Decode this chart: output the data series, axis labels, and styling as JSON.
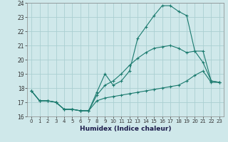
{
  "xlabel": "Humidex (Indice chaleur)",
  "bg_color": "#cfe8ea",
  "grid_color": "#aacfd2",
  "line_color": "#1a7a6e",
  "xlim": [
    -0.5,
    23.5
  ],
  "ylim": [
    16,
    24
  ],
  "xtick_labels": [
    "0",
    "1",
    "2",
    "3",
    "4",
    "5",
    "6",
    "7",
    "8",
    "9",
    "10",
    "11",
    "12",
    "13",
    "14",
    "15",
    "16",
    "17",
    "18",
    "19",
    "20",
    "21",
    "22",
    "23"
  ],
  "ytick_labels": [
    "16",
    "17",
    "18",
    "19",
    "20",
    "21",
    "22",
    "23",
    "24"
  ],
  "line1_x": [
    0,
    1,
    2,
    3,
    4,
    5,
    6,
    7,
    8,
    9,
    10,
    11,
    12,
    13,
    14,
    15,
    16,
    17,
    18,
    19,
    20,
    21,
    22,
    23
  ],
  "line1_y": [
    17.8,
    17.1,
    17.1,
    17.0,
    16.5,
    16.5,
    16.4,
    16.4,
    17.7,
    19.0,
    18.2,
    18.5,
    19.2,
    21.5,
    22.3,
    23.1,
    23.8,
    23.8,
    23.4,
    23.1,
    20.6,
    20.6,
    18.5,
    18.4
  ],
  "line2_x": [
    0,
    1,
    2,
    3,
    4,
    5,
    6,
    7,
    8,
    9,
    10,
    11,
    12,
    13,
    14,
    15,
    16,
    17,
    18,
    19,
    20,
    21,
    22,
    23
  ],
  "line2_y": [
    17.8,
    17.1,
    17.1,
    17.0,
    16.5,
    16.5,
    16.4,
    16.4,
    17.1,
    17.3,
    17.4,
    17.5,
    17.6,
    17.7,
    17.8,
    17.9,
    18.0,
    18.1,
    18.2,
    18.5,
    18.9,
    19.2,
    18.4,
    18.4
  ],
  "line3_x": [
    0,
    1,
    2,
    3,
    4,
    5,
    6,
    7,
    8,
    9,
    10,
    11,
    12,
    13,
    14,
    15,
    16,
    17,
    18,
    19,
    20,
    21,
    22,
    23
  ],
  "line3_y": [
    17.8,
    17.1,
    17.1,
    17.0,
    16.5,
    16.5,
    16.4,
    16.4,
    17.5,
    18.2,
    18.5,
    19.0,
    19.6,
    20.1,
    20.5,
    20.8,
    20.9,
    21.0,
    20.8,
    20.5,
    20.6,
    19.8,
    18.5,
    18.4
  ]
}
